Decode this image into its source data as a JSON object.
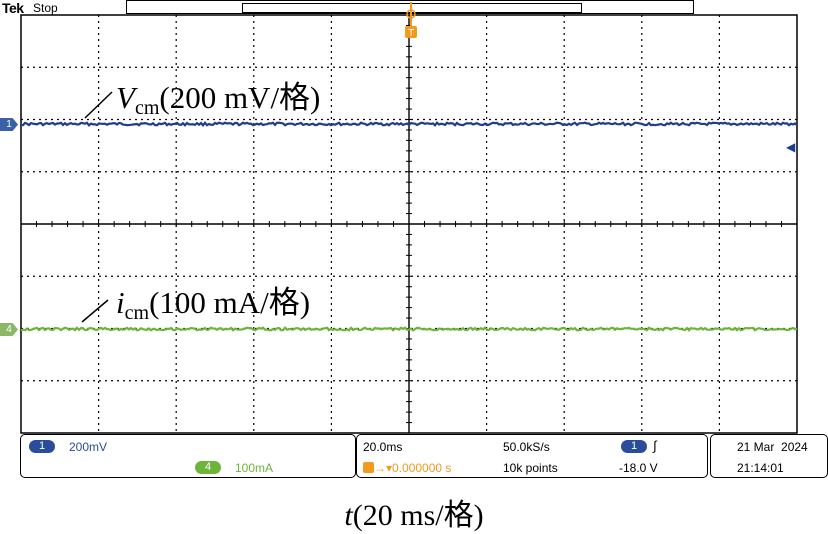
{
  "header": {
    "brand": "Tek",
    "run_state": "Stop"
  },
  "channels": [
    {
      "number": "1",
      "scale": "200mV",
      "color": "#1f3d8c"
    },
    {
      "number": "4",
      "scale": "100mA",
      "color": "#6fb43a"
    }
  ],
  "trigger_marker_label": "T",
  "annotations": {
    "voltage": {
      "symbol": "V",
      "subscript": "cm",
      "scale": "(200 mV/格)"
    },
    "current": {
      "symbol": "i",
      "subscript": "cm",
      "scale": "(100 mA/格)"
    }
  },
  "status": {
    "timebase": "20.0ms",
    "sample_rate": "50.0kS/s",
    "trigger_delay": "0.000000 s",
    "record_length": "10k points",
    "trigger_channel": "1",
    "trigger_slope_icon": "rising-edge-icon",
    "trigger_level": "-18.0 V",
    "date": "21 Mar  2024",
    "time": "21:14:01"
  },
  "x_axis_label": {
    "symbol": "t",
    "scale": "(20 ms/格)"
  }
}
